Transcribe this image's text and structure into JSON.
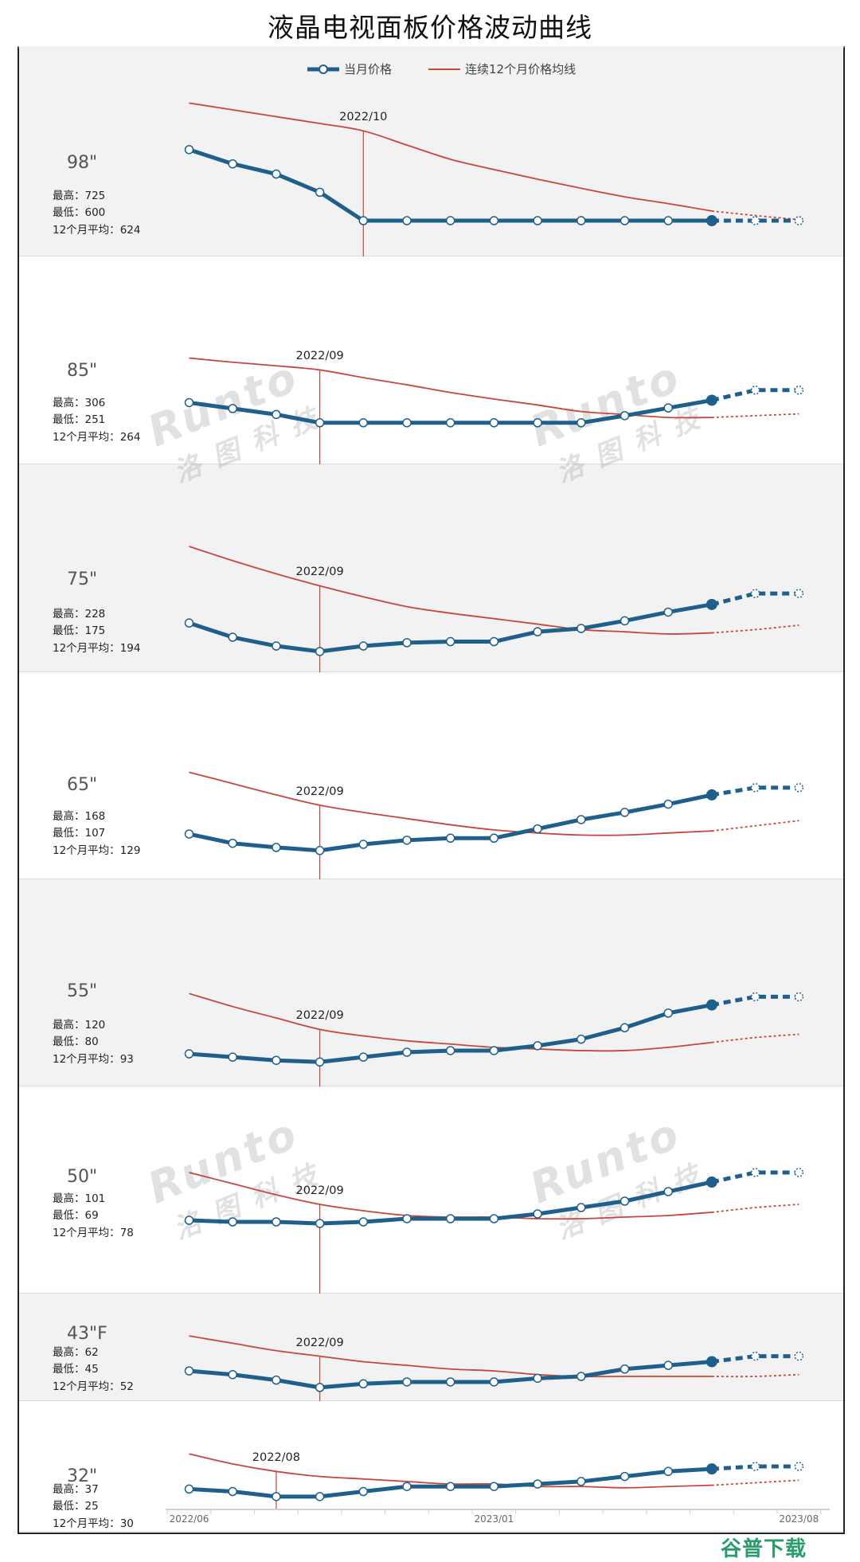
{
  "title": "液晶电视面板价格波动曲线",
  "legend": {
    "current": "当月价格",
    "avg": "连续12个月价格均线"
  },
  "stats_labels": {
    "max": "最高：",
    "min": "最低：",
    "avg": "12个月平均："
  },
  "watermark": {
    "brand": "Runto",
    "cn": "洛图科技"
  },
  "site_logo": "谷普下载",
  "colors": {
    "current": "#1f5f8b",
    "avg": "#c8463a",
    "panel_gray": "#f2f2f2"
  },
  "chart_data": {
    "type": "line",
    "title": "液晶电视面板价格波动曲线",
    "x_count": 15,
    "x_ticks": [
      {
        "label": "2022/06",
        "index": 0
      },
      {
        "label": "2023/01",
        "index": 7
      },
      {
        "label": "2023/08",
        "index": 14
      }
    ],
    "forecast_from_index": 12,
    "panels": [
      {
        "size": "98\"",
        "max": "725",
        "min": "600",
        "avg12": "624",
        "marker": {
          "label": "2022/10",
          "index": 4
        },
        "ylim": [
          537,
          907
        ],
        "current": [
          725,
          700,
          682,
          650,
          600,
          600,
          600,
          600,
          600,
          600,
          600,
          600,
          600,
          600,
          600
        ],
        "avg": [
          807,
          795,
          783,
          771,
          758,
          733,
          708,
          690,
          673,
          657,
          642,
          630,
          617,
          609,
          602
        ]
      },
      {
        "size": "85\"",
        "max": "306",
        "min": "251",
        "avg12": "264",
        "marker": {
          "label": "2022/09",
          "index": 3
        },
        "ylim": [
          181,
          531
        ],
        "current": [
          285,
          275,
          265,
          251,
          251,
          251,
          251,
          251,
          251,
          251,
          263,
          276,
          289,
          306,
          306
        ],
        "avg": [
          360,
          353,
          347,
          340,
          327,
          315,
          302,
          291,
          281,
          270,
          265,
          260,
          260,
          263,
          266
        ]
      },
      {
        "size": "75\"",
        "max": "228",
        "min": "175",
        "avg12": "194",
        "marker": {
          "label": "2022/09",
          "index": 3
        },
        "ylim": [
          156,
          346
        ],
        "current": [
          201,
          188,
          180,
          175,
          180,
          183,
          184,
          184,
          193,
          196,
          203,
          211,
          218,
          228,
          228
        ],
        "avg": [
          271,
          258,
          246,
          235,
          225,
          216,
          210,
          205,
          200,
          195,
          193,
          191,
          192,
          195,
          199
        ]
      },
      {
        "size": "65\"",
        "max": "168",
        "min": "107",
        "avg12": "129",
        "marker": {
          "label": "2022/09",
          "index": 3
        },
        "ylim": [
          79,
          280
        ],
        "current": [
          123,
          114,
          110,
          107,
          113,
          117,
          119,
          119,
          128,
          137,
          144,
          152,
          161,
          168,
          168
        ],
        "avg": [
          183,
          172,
          161,
          151,
          144,
          138,
          132,
          127,
          124,
          122,
          122,
          124,
          126,
          131,
          136
        ]
      },
      {
        "size": "55\"",
        "max": "120",
        "min": "80",
        "avg12": "93",
        "marker": {
          "label": "2022/09",
          "index": 3
        },
        "ylim": [
          65,
          192
        ],
        "current": [
          85,
          83,
          81,
          80,
          83,
          86,
          87,
          87,
          90,
          94,
          101,
          110,
          115,
          120,
          120
        ],
        "avg": [
          122,
          114,
          107,
          100,
          96,
          93,
          91,
          89,
          88,
          87,
          87,
          89,
          92,
          95,
          97
        ]
      },
      {
        "size": "50\"",
        "max": "101",
        "min": "69",
        "avg12": "78",
        "marker": {
          "label": "2022/09",
          "index": 3
        },
        "ylim": [
          25,
          155
        ],
        "current": [
          71,
          70,
          70,
          69,
          70,
          72,
          72,
          72,
          75,
          79,
          83,
          89,
          95,
          101,
          101
        ],
        "avg": [
          101,
          94,
          87,
          81,
          77,
          74,
          73,
          73,
          72,
          72,
          73,
          74,
          76,
          79,
          81
        ]
      },
      {
        "size": "43\"F",
        "max": "62",
        "min": "45",
        "avg12": "52",
        "marker": {
          "label": "2022/09",
          "index": 3
        },
        "ylim": [
          37.6,
          96
        ],
        "current": [
          54,
          52,
          49,
          45,
          47,
          48,
          48,
          48,
          50,
          51,
          55,
          57,
          59,
          62,
          62
        ],
        "avg": [
          73,
          69,
          65,
          62,
          59,
          57,
          55,
          54,
          52,
          51,
          51,
          51,
          51,
          51,
          52
        ]
      },
      {
        "size": "32\"",
        "max": "37",
        "min": "25",
        "avg12": "30",
        "marker": {
          "label": "2022/08",
          "index": 2
        },
        "ylim": [
          11,
          63
        ],
        "current": [
          28,
          27,
          25,
          25,
          27,
          29,
          29,
          29,
          30,
          31,
          33,
          35,
          36,
          37,
          37
        ],
        "avg": [
          42,
          38,
          35,
          33,
          32,
          31,
          30,
          30,
          29,
          29,
          28.5,
          29,
          29.5,
          30.5,
          31.5
        ]
      }
    ]
  }
}
